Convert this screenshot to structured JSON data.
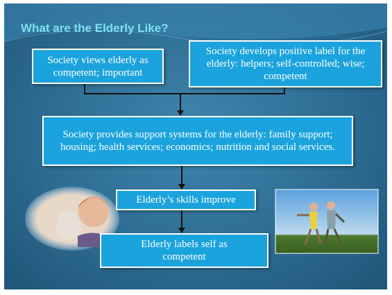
{
  "title": "What are the Elderly Like?",
  "nodes": [
    {
      "label": "Society views elderly as competent; important"
    },
    {
      "label": "Society develops positive label for the elderly: helpers; self-controlled; wise; competent"
    },
    {
      "label": "Society provides support systems for the elderly: family support; housing; health services; economics; nutrition and social services."
    },
    {
      "label": "Elderly’s skills improve"
    },
    {
      "label": "Elderly labels self as competent"
    }
  ]
}
